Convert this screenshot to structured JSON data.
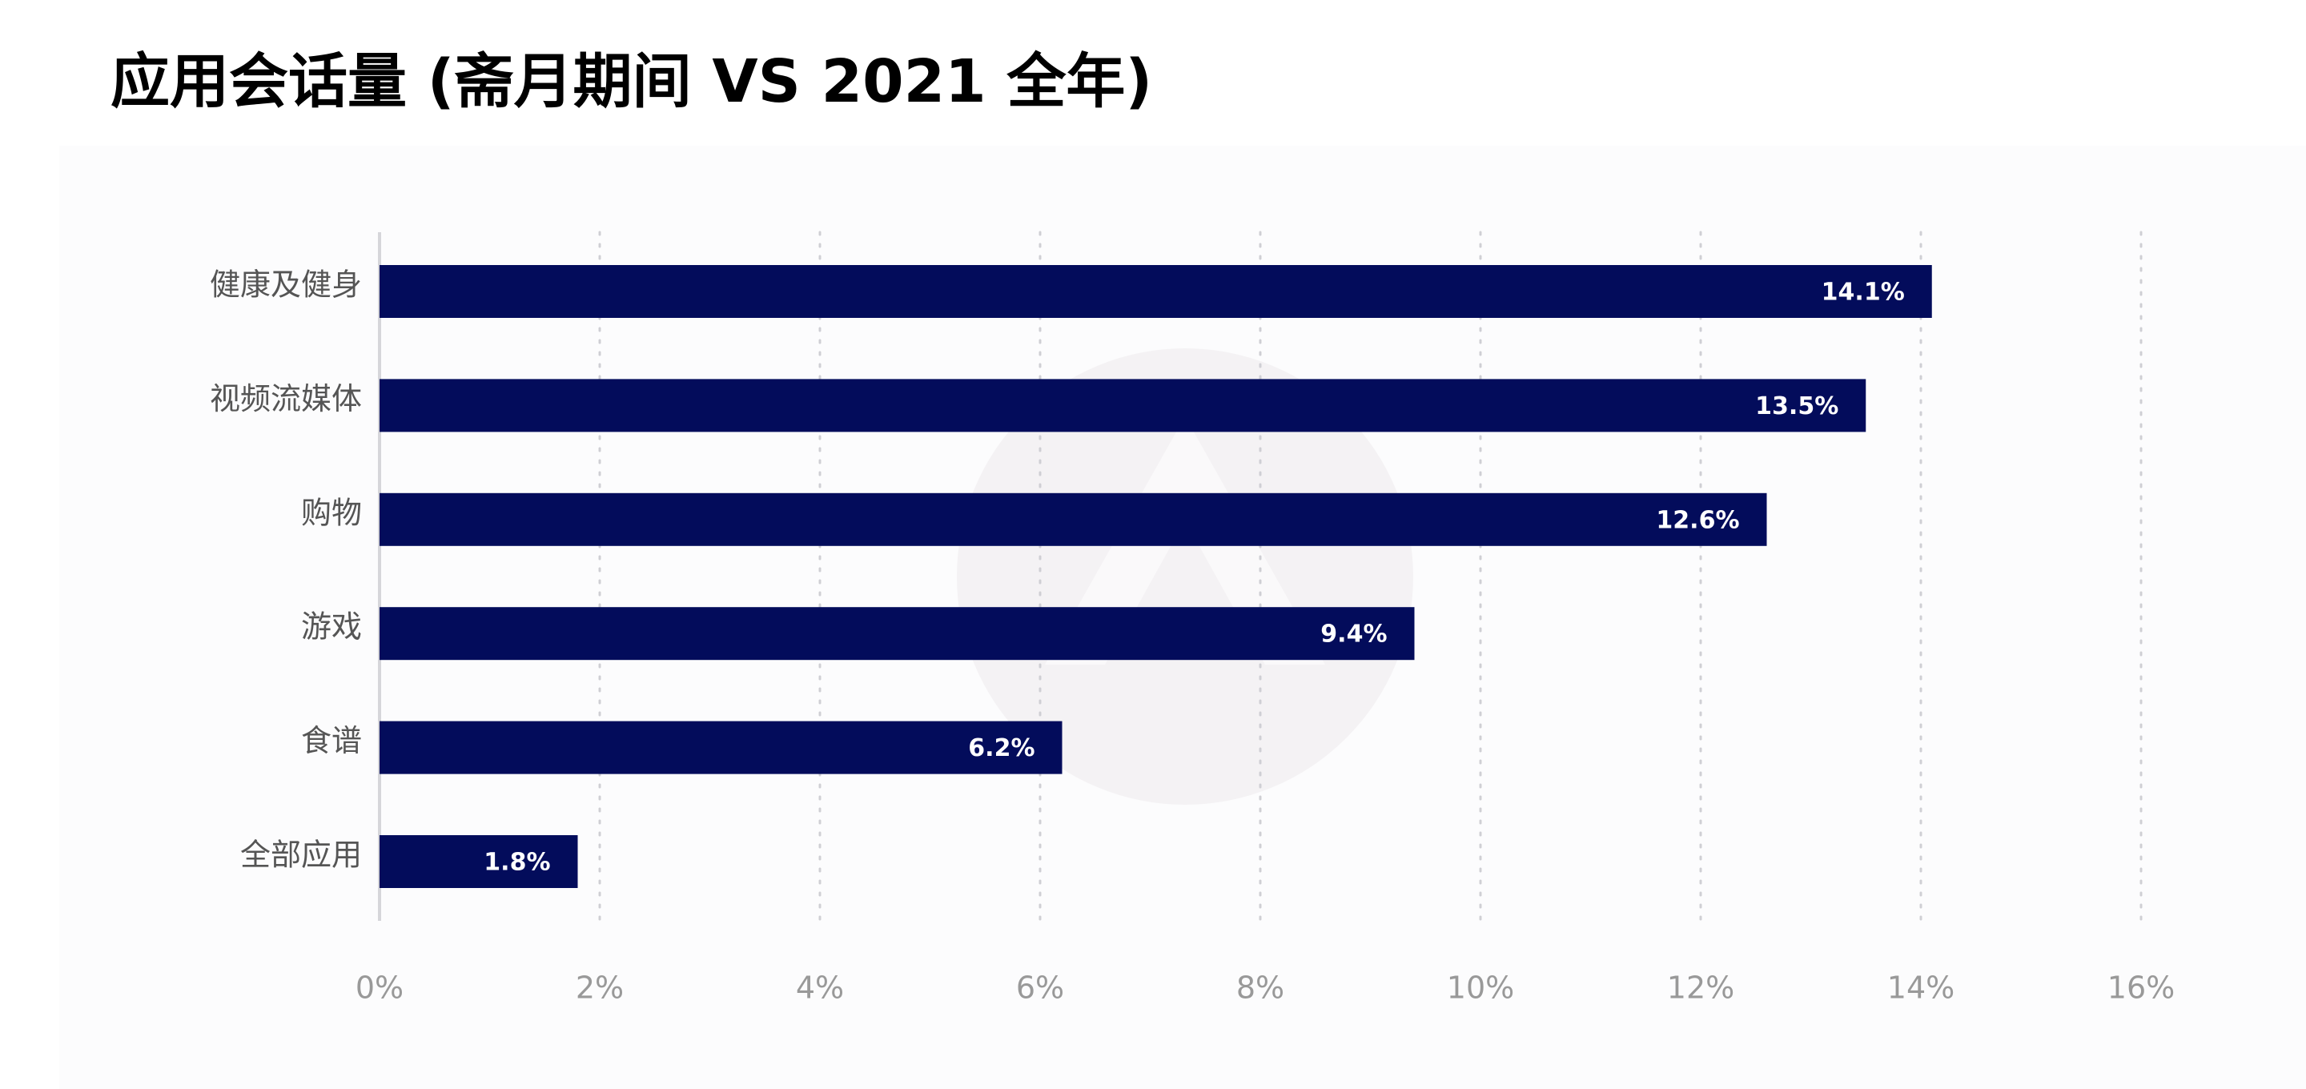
{
  "title": "应用会话量 (斋月期间 VS 2021 全年)",
  "colors": {
    "bar": "#030c5b",
    "bar_label": "#ffffff",
    "category_label": "#555555",
    "tick_label": "#999999",
    "grid": "#cfcfd4",
    "axis": "#d6d6da",
    "watermark": "#f4f2f4"
  },
  "chart_data": {
    "type": "bar",
    "orientation": "horizontal",
    "title": "应用会话量 (斋月期间 VS 2021 全年)",
    "categories": [
      "健康及健身",
      "视频流媒体",
      "购物",
      "游戏",
      "食谱",
      "全部应用"
    ],
    "values": [
      14.1,
      13.5,
      12.6,
      9.4,
      6.2,
      1.8
    ],
    "value_labels": [
      "14.1%",
      "13.5%",
      "12.6%",
      "9.4%",
      "6.2%",
      "1.8%"
    ],
    "x_ticks": [
      "0%",
      "2%",
      "4%",
      "6%",
      "8%",
      "10%",
      "12%",
      "14%",
      "16%"
    ],
    "xlim": [
      0,
      16
    ],
    "xlabel": "",
    "ylabel": "",
    "grid": "vertical dotted",
    "legend": "none"
  }
}
